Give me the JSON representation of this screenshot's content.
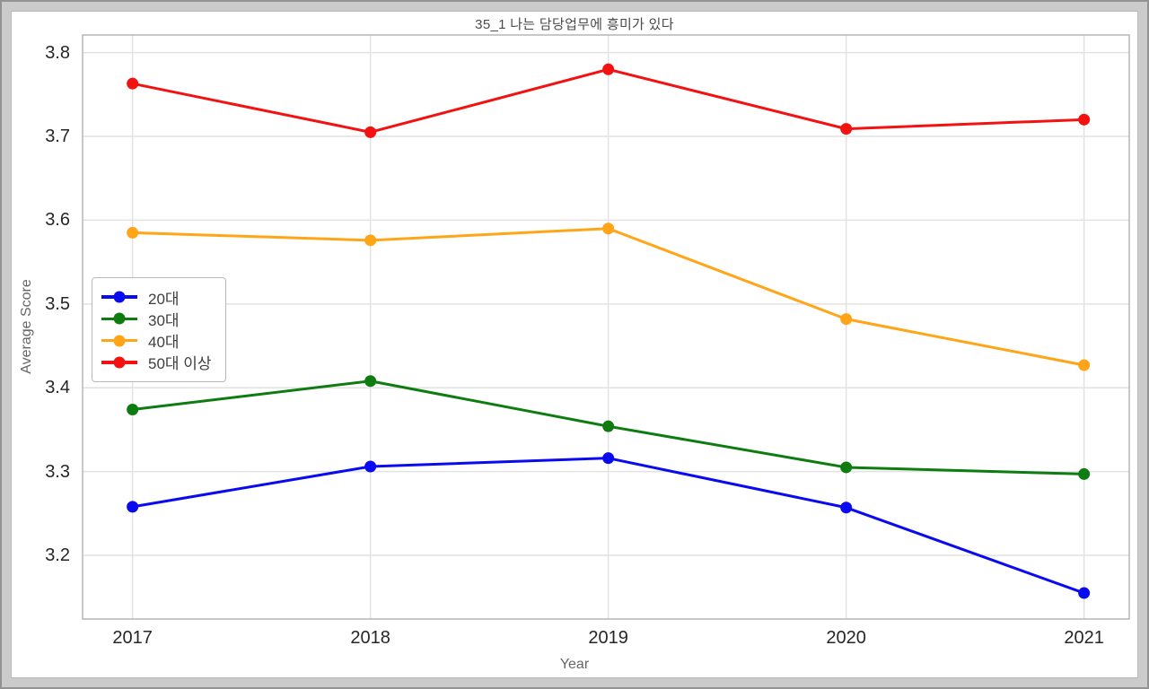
{
  "window": {
    "background": "#cbcbcb"
  },
  "chart_data": {
    "type": "line",
    "title": "35_1 나는 담당업무에 흥미가 있다",
    "xlabel": "Year",
    "ylabel": "Average Score",
    "categories": [
      2017,
      2018,
      2019,
      2020,
      2021
    ],
    "x_tick_labels": [
      "2017",
      "2018",
      "2019",
      "2020",
      "2021"
    ],
    "y_tick_labels": [
      "3.2",
      "3.3",
      "3.4",
      "3.5",
      "3.6",
      "3.7",
      "3.8"
    ],
    "xlim": [
      2016.79,
      2021.19
    ],
    "ylim": [
      3.124,
      3.821
    ],
    "grid": true,
    "legend_position": "center-left",
    "series": [
      {
        "name": "20대",
        "color": "#0a0af0",
        "values": [
          3.258,
          3.306,
          3.316,
          3.257,
          3.155
        ]
      },
      {
        "name": "30대",
        "color": "#0e7c10",
        "values": [
          3.374,
          3.408,
          3.354,
          3.305,
          3.297
        ]
      },
      {
        "name": "40대",
        "color": "#ffa517",
        "values": [
          3.585,
          3.576,
          3.59,
          3.482,
          3.427
        ]
      },
      {
        "name": "50대 이상",
        "color": "#f21212",
        "values": [
          3.763,
          3.705,
          3.78,
          3.709,
          3.72
        ]
      }
    ]
  },
  "style": {
    "grid_color": "#e2e2e2",
    "spine_color": "#b5b5b5",
    "tick_label_color": "#262626",
    "axis_label_color": "#666666",
    "title_color": "#4a4a4a",
    "marker_radius": 6.5,
    "line_width": 3
  }
}
